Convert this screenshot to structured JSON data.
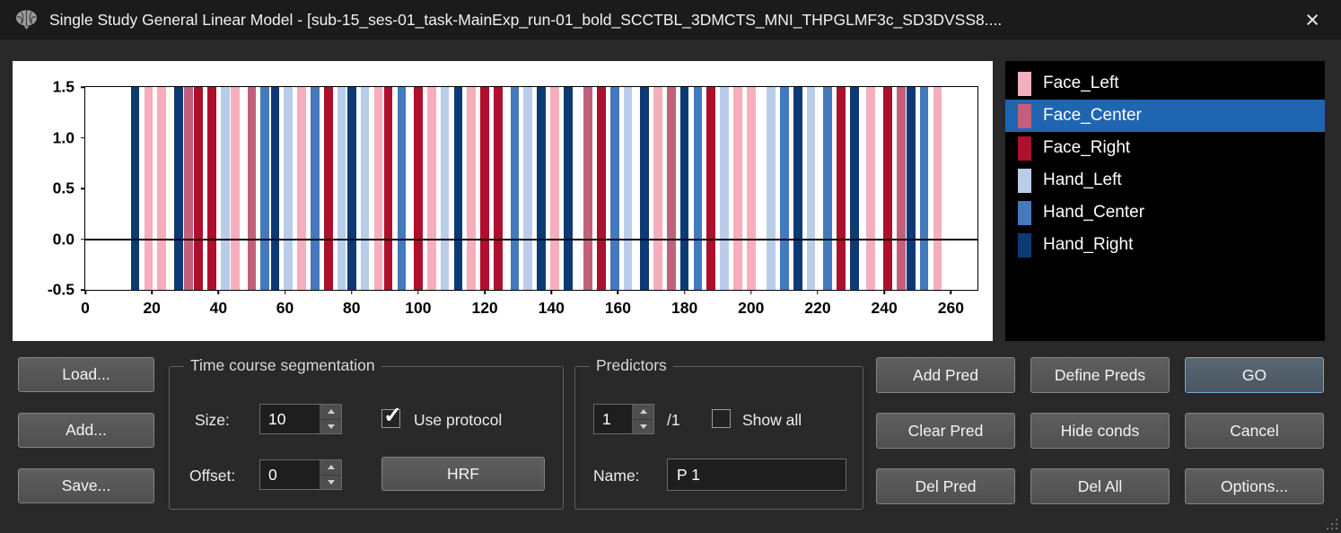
{
  "window": {
    "title": "Single Study General Linear Model - [sub-15_ses-01_task-MainExp_run-01_bold_SCCTBL_3DMCTS_MNI_THPGLMF3c_SD3DVSS8...."
  },
  "chart_data": {
    "type": "bar",
    "title": "",
    "xlabel": "",
    "ylabel": "",
    "xlim": [
      0,
      268
    ],
    "ylim": [
      -0.5,
      1.5
    ],
    "x_ticks": [
      0,
      20,
      40,
      60,
      80,
      100,
      120,
      140,
      160,
      180,
      200,
      220,
      240,
      260
    ],
    "y_ticks": [
      {
        "label": "1.5",
        "value": 1.5
      },
      {
        "label": "1.0",
        "value": 1.0
      },
      {
        "label": "0.5",
        "value": 0.5
      },
      {
        "label": "0.0",
        "value": 0.0
      },
      {
        "label": "-0.5",
        "value": -0.5
      }
    ],
    "zero_line": 0.0,
    "bar_width": 2.6,
    "grid": false,
    "legend_position": "right-panel",
    "conditions": [
      {
        "name": "Face_Left",
        "color": "#f6aebc"
      },
      {
        "name": "Face_Center",
        "color": "#c2607c"
      },
      {
        "name": "Face_Right",
        "color": "#ad0f2c"
      },
      {
        "name": "Hand_Left",
        "color": "#b9cdea"
      },
      {
        "name": "Hand_Center",
        "color": "#4379bd"
      },
      {
        "name": "Hand_Right",
        "color": "#0c3a75"
      }
    ],
    "events": [
      [
        15,
        "Hand_Right"
      ],
      [
        19,
        "Face_Left"
      ],
      [
        23,
        "Face_Left"
      ],
      [
        28,
        "Hand_Right"
      ],
      [
        31,
        "Face_Center"
      ],
      [
        34,
        "Face_Right"
      ],
      [
        38,
        "Face_Right"
      ],
      [
        42,
        "Hand_Left"
      ],
      [
        45,
        "Face_Left"
      ],
      [
        50,
        "Face_Center"
      ],
      [
        54,
        "Hand_Center"
      ],
      [
        57,
        "Hand_Right"
      ],
      [
        61,
        "Hand_Left"
      ],
      [
        65,
        "Face_Left"
      ],
      [
        69,
        "Hand_Center"
      ],
      [
        73,
        "Face_Right"
      ],
      [
        77,
        "Hand_Left"
      ],
      [
        80,
        "Hand_Right"
      ],
      [
        84,
        "Hand_Left"
      ],
      [
        88,
        "Face_Left"
      ],
      [
        91,
        "Face_Right"
      ],
      [
        95,
        "Hand_Center"
      ],
      [
        100,
        "Face_Right"
      ],
      [
        104,
        "Face_Left"
      ],
      [
        108,
        "Hand_Left"
      ],
      [
        112,
        "Hand_Right"
      ],
      [
        116,
        "Face_Left"
      ],
      [
        120,
        "Face_Right"
      ],
      [
        124,
        "Face_Right"
      ],
      [
        129,
        "Hand_Center"
      ],
      [
        133,
        "Hand_Left"
      ],
      [
        137,
        "Hand_Right"
      ],
      [
        141,
        "Face_Left"
      ],
      [
        145,
        "Hand_Right"
      ],
      [
        151,
        "Face_Center"
      ],
      [
        155,
        "Face_Right"
      ],
      [
        159,
        "Hand_Center"
      ],
      [
        163,
        "Hand_Left"
      ],
      [
        168,
        "Hand_Right"
      ],
      [
        172,
        "Face_Left"
      ],
      [
        176,
        "Face_Center"
      ],
      [
        180,
        "Hand_Right"
      ],
      [
        184,
        "Hand_Center"
      ],
      [
        188,
        "Face_Right"
      ],
      [
        192,
        "Hand_Left"
      ],
      [
        196,
        "Face_Left"
      ],
      [
        200,
        "Face_Left"
      ],
      [
        206,
        "Hand_Left"
      ],
      [
        210,
        "Hand_Center"
      ],
      [
        214,
        "Hand_Right"
      ],
      [
        218,
        "Hand_Left"
      ],
      [
        223,
        "Hand_Center"
      ],
      [
        227,
        "Face_Right"
      ],
      [
        231,
        "Hand_Right"
      ],
      [
        236,
        "Face_Left"
      ],
      [
        241,
        "Face_Right"
      ],
      [
        245,
        "Face_Center"
      ],
      [
        248,
        "Hand_Right"
      ],
      [
        252,
        "Hand_Center"
      ],
      [
        256,
        "Face_Left"
      ]
    ]
  },
  "condition_list": {
    "selected_bg": "#2065b2",
    "items": [
      {
        "label": "Face_Left",
        "color": "#f6aebc",
        "selected": false
      },
      {
        "label": "Face_Center",
        "color": "#c2607c",
        "selected": true
      },
      {
        "label": "Face_Right",
        "color": "#ad0f2c",
        "selected": false
      },
      {
        "label": "Hand_Left",
        "color": "#b9cdea",
        "selected": false
      },
      {
        "label": "Hand_Center",
        "color": "#4379bd",
        "selected": false
      },
      {
        "label": "Hand_Right",
        "color": "#0c3a75",
        "selected": false
      }
    ]
  },
  "file_buttons": {
    "load": "Load...",
    "add": "Add...",
    "save": "Save..."
  },
  "segmentation": {
    "title": "Time course segmentation",
    "size_label": "Size:",
    "size_value": "10",
    "use_protocol_label": "Use protocol",
    "use_protocol_checked": true,
    "offset_label": "Offset:",
    "offset_value": "0",
    "hrf_label": "HRF"
  },
  "predictors": {
    "title": "Predictors",
    "index_value": "1",
    "total_label": "/1",
    "show_all_label": "Show all",
    "show_all_checked": false,
    "name_label": "Name:",
    "name_value": "P 1"
  },
  "action_buttons": {
    "rows": [
      [
        {
          "label": "Add Pred"
        },
        {
          "label": "Define Preds"
        },
        {
          "label": "GO",
          "primary": true
        }
      ],
      [
        {
          "label": "Clear Pred"
        },
        {
          "label": "Hide conds"
        },
        {
          "label": "Cancel"
        }
      ],
      [
        {
          "label": "Del Pred"
        },
        {
          "label": "Del All"
        },
        {
          "label": "Options..."
        }
      ]
    ]
  }
}
